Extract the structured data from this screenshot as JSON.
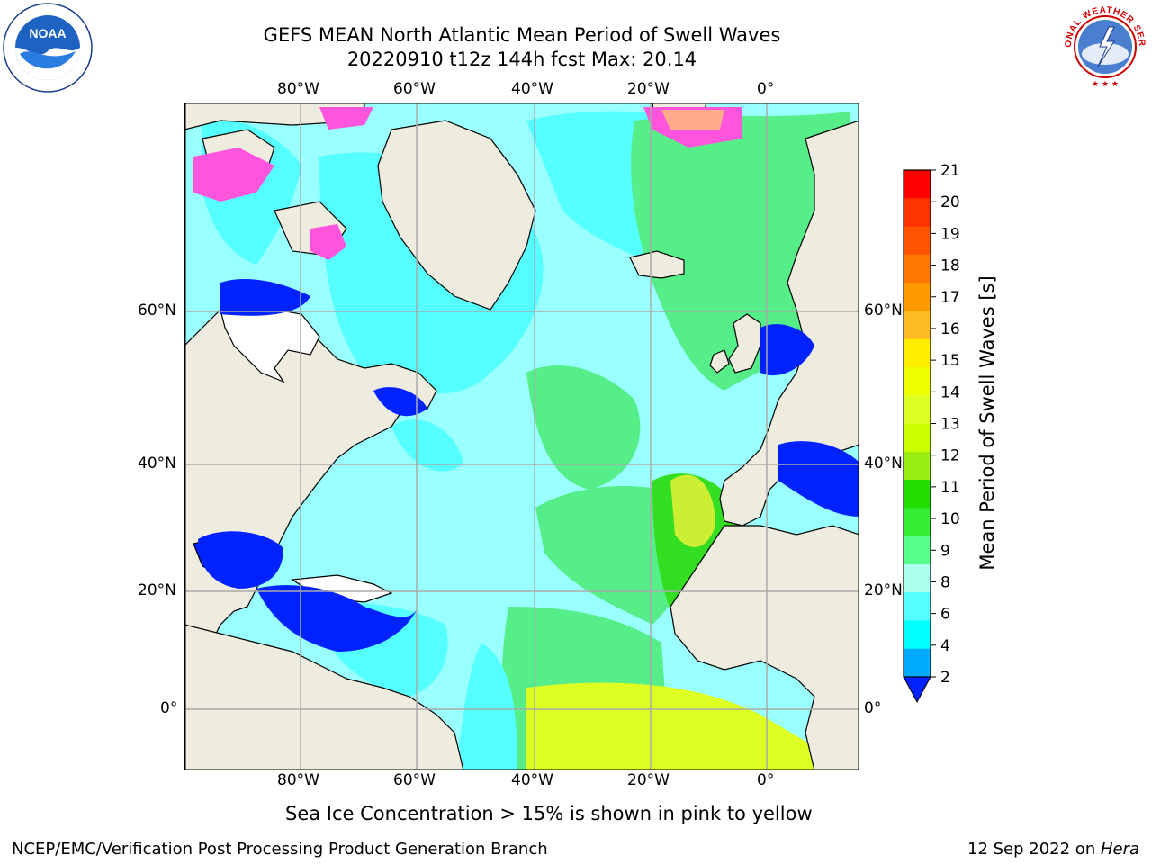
{
  "title": {
    "line1": "GEFS MEAN North Atlantic Mean Period of Swell Waves",
    "line2": "20220910 t12z 144h fcst   Max: 20.14"
  },
  "map": {
    "lon_labels": [
      "80°W",
      "60°W",
      "40°W",
      "20°W",
      "0°"
    ],
    "lat_labels": [
      "60°N",
      "40°N",
      "20°N",
      "0°"
    ]
  },
  "colorbar": {
    "label": "Mean Period of Swell Waves [s]",
    "ticks": [
      "21",
      "20",
      "19",
      "18",
      "17",
      "16",
      "15",
      "14",
      "13",
      "12",
      "11",
      "10",
      "9",
      "8",
      "6",
      "4",
      "2"
    ],
    "colors": [
      "#ff0000",
      "#ff3300",
      "#ff5500",
      "#ff7700",
      "#ff9900",
      "#ffbb22",
      "#ffee00",
      "#eeff00",
      "#ddff22",
      "#ccff00",
      "#99ee11",
      "#22dd00",
      "#33ee33",
      "#55ff88",
      "#aaffee",
      "#55ffff",
      "#00ffff",
      "#00aaff"
    ],
    "extend_color": "#0022ff"
  },
  "caption": "Sea Ice Concentration > 15% is shown in pink to yellow",
  "footer": {
    "left": "NCEP/EMC/Verification Post Processing Product Generation Branch",
    "right_date": "12 Sep 2022 on ",
    "right_host": "Hera"
  },
  "logos": {
    "left_text": "NOAA",
    "right_text": "NATIONAL WEATHER SERVICE"
  }
}
